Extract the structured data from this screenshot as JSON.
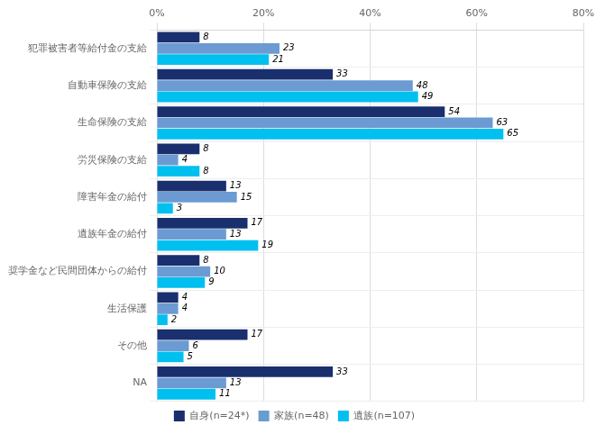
{
  "chart_data": {
    "type": "bar",
    "orientation": "horizontal",
    "categories": [
      "犯罪被害者等給付金の支給",
      "自動車保険の支給",
      "生命保険の支給",
      "労災保険の支給",
      "障害年金の給付",
      "遺族年金の給付",
      "奨学金など民間団体からの給付",
      "生活保護",
      "その他",
      "NA"
    ],
    "series": [
      {
        "name": "自身(n=24*)",
        "color": "#1a2f6e",
        "values": [
          8,
          33,
          54,
          8,
          13,
          17,
          8,
          4,
          17,
          33
        ]
      },
      {
        "name": "家族(n=48)",
        "color": "#6b9bd2",
        "values": [
          23,
          48,
          63,
          4,
          15,
          13,
          10,
          4,
          6,
          13
        ]
      },
      {
        "name": "遺族(n=107)",
        "color": "#00c0f0",
        "values": [
          21,
          49,
          65,
          8,
          3,
          19,
          9,
          2,
          5,
          11
        ]
      }
    ],
    "xlim": [
      0,
      80
    ],
    "xticks": [
      {
        "value": 0,
        "label": "0%"
      },
      {
        "value": 20,
        "label": "20%"
      },
      {
        "value": 40,
        "label": "40%"
      },
      {
        "value": 60,
        "label": "60%"
      },
      {
        "value": 80,
        "label": "80%"
      }
    ],
    "grid": true,
    "data_labels": true,
    "legend": "bottom"
  }
}
